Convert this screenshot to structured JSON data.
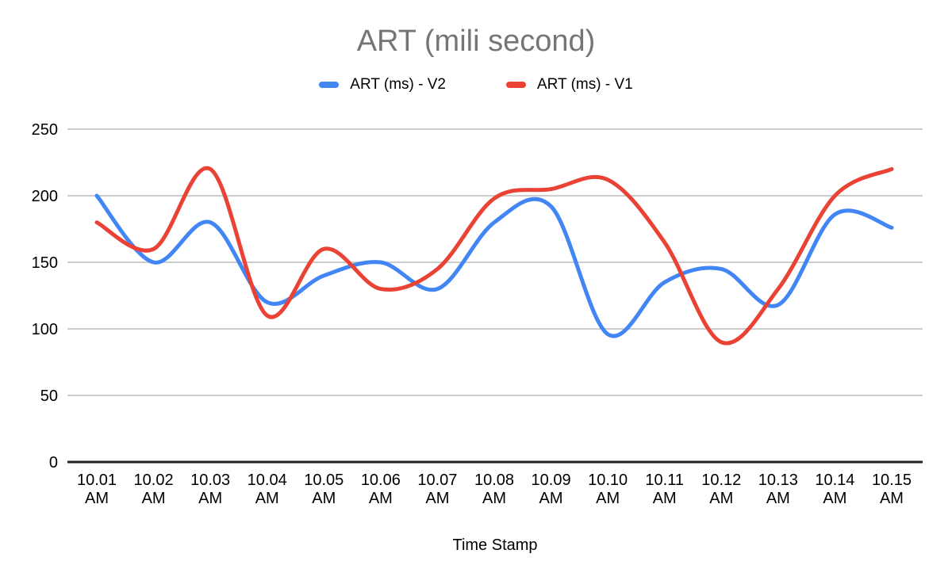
{
  "chart": {
    "title": "ART (mili second)"
  },
  "colors": {
    "title_text": "#757575",
    "axis_text": "#000000",
    "gridline": "#cccccc",
    "axis_line": "#212121",
    "background": "#ffffff",
    "series_v2": "#4285F4",
    "series_v1": "#EA4335"
  },
  "chart_data": {
    "type": "line",
    "title": "ART (mili second)",
    "xlabel": "Time Stamp",
    "ylabel": "",
    "categories": [
      "10.01 AM",
      "10.02 AM",
      "10.03 AM",
      "10.04 AM",
      "10.05 AM",
      "10.06 AM",
      "10.07 AM",
      "10.08 AM",
      "10.09 AM",
      "10.10 AM",
      "10.11 AM",
      "10.12 AM",
      "10.13 AM",
      "10.14 AM",
      "10.15 AM"
    ],
    "series": [
      {
        "name": "ART (ms) - V2",
        "color": "#4285F4",
        "values": [
          200,
          150,
          180,
          120,
          140,
          150,
          130,
          180,
          192,
          96,
          135,
          145,
          118,
          186,
          176
        ]
      },
      {
        "name": "ART (ms) - V1",
        "color": "#EA4335",
        "values": [
          180,
          160,
          220,
          110,
          160,
          130,
          145,
          198,
          205,
          212,
          165,
          90,
          130,
          200,
          220
        ]
      }
    ],
    "ylim": [
      0,
      250
    ],
    "y_ticks": [
      0,
      50,
      100,
      150,
      200,
      250
    ],
    "y_tick_labels": [
      "0",
      "50",
      "100",
      "150",
      "200",
      "250"
    ],
    "grid": "horizontal",
    "legend_position": "top",
    "line_smoothing": true
  }
}
